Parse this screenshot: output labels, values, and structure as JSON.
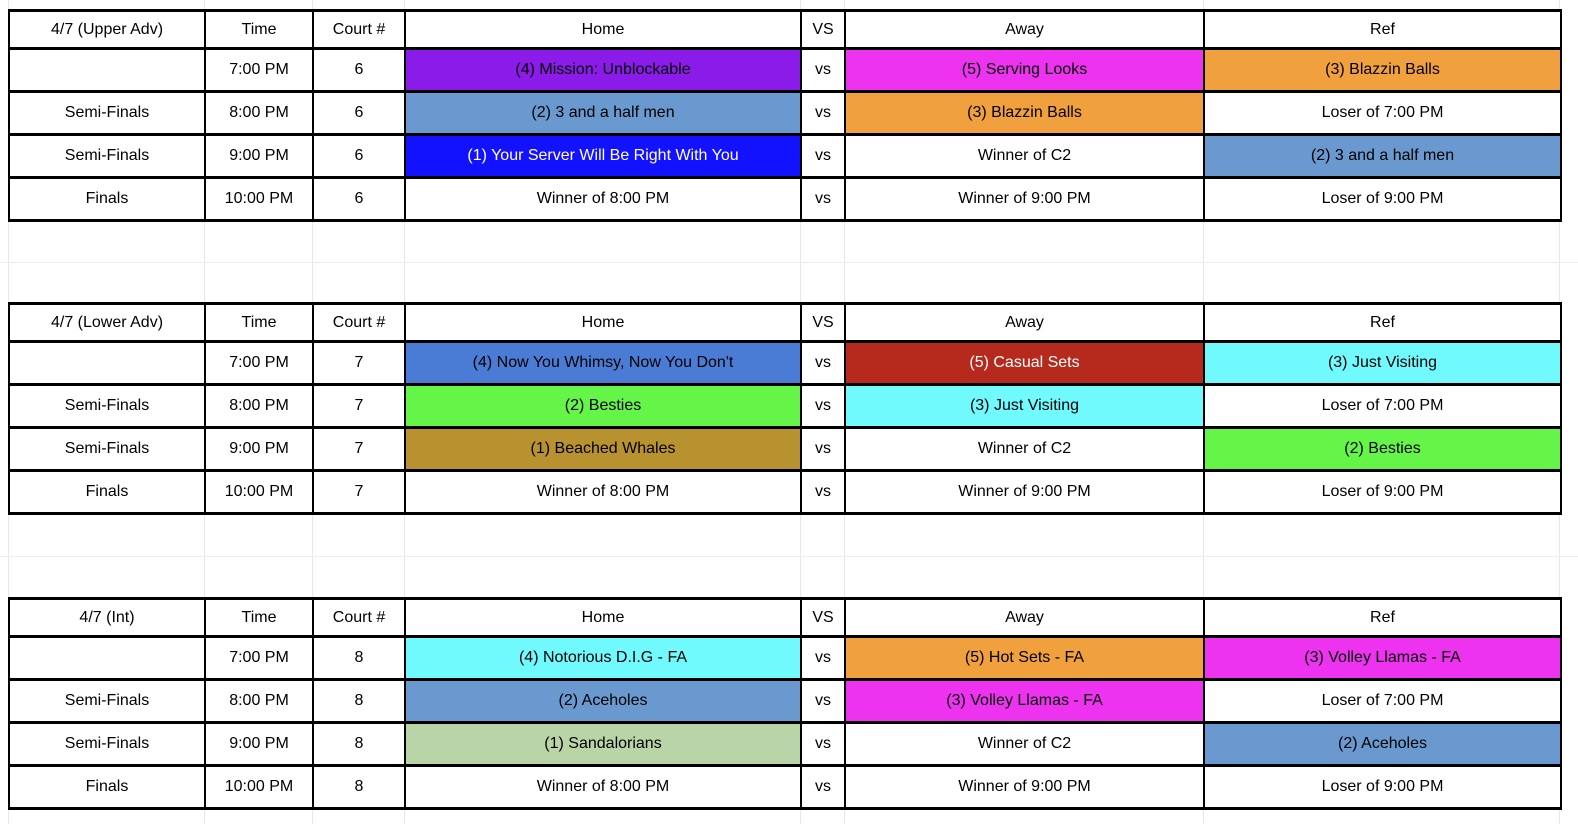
{
  "columns": {
    "time": "Time",
    "court": "Court #",
    "home": "Home",
    "vs": "VS",
    "away": "Away",
    "ref": "Ref"
  },
  "vs_label": "vs",
  "palette": {
    "white": "#FFFFFF",
    "purple": "#8B1BE8",
    "magenta": "#EE33F0",
    "orange": "#F0A03C",
    "steelblue": "#6999CF",
    "blue": "#1212FF",
    "royalblue": "#4B7CD5",
    "darkred": "#B52A1D",
    "cyan": "#70FAFE",
    "green": "#64F548",
    "gold": "#B7922E",
    "palegreen": "#B9D4A7",
    "black_text": "#000000",
    "white_text": "#FFFFFF"
  },
  "tables": [
    {
      "title": "4/7 (Upper Adv)",
      "rows": [
        {
          "label": "",
          "time": "7:00 PM",
          "court": "6",
          "home": {
            "text": "(4) Mission: Unblockable",
            "bg": "purple"
          },
          "away": {
            "text": "(5) Serving Looks",
            "bg": "magenta"
          },
          "ref": {
            "text": "(3) Blazzin Balls",
            "bg": "orange"
          }
        },
        {
          "label": "Semi-Finals",
          "time": "8:00 PM",
          "court": "6",
          "home": {
            "text": "(2) 3 and a half men",
            "bg": "steelblue"
          },
          "away": {
            "text": "(3) Blazzin Balls",
            "bg": "orange"
          },
          "ref": {
            "text": "Loser of 7:00 PM",
            "bg": "white"
          }
        },
        {
          "label": "Semi-Finals",
          "time": "9:00 PM",
          "court": "6",
          "home": {
            "text": "(1) Your Server Will Be Right With You",
            "bg": "blue",
            "fg": "#FFFFFF"
          },
          "away": {
            "text": "Winner of C2",
            "bg": "white"
          },
          "ref": {
            "text": "(2) 3 and a half men",
            "bg": "steelblue"
          }
        },
        {
          "label": "Finals",
          "time": "10:00 PM",
          "court": "6",
          "home": {
            "text": "Winner of 8:00 PM",
            "bg": "white"
          },
          "away": {
            "text": "Winner of 9:00 PM",
            "bg": "white"
          },
          "ref": {
            "text": "Loser of 9:00 PM",
            "bg": "white"
          }
        }
      ]
    },
    {
      "title": "4/7 (Lower Adv)",
      "rows": [
        {
          "label": "",
          "time": "7:00 PM",
          "court": "7",
          "home": {
            "text": "(4) Now You Whimsy, Now You Don't",
            "bg": "royalblue"
          },
          "away": {
            "text": "(5) Casual Sets",
            "bg": "darkred",
            "fg": "#FFFFFF"
          },
          "ref": {
            "text": "(3) Just Visiting",
            "bg": "cyan"
          }
        },
        {
          "label": "Semi-Finals",
          "time": "8:00 PM",
          "court": "7",
          "home": {
            "text": "(2) Besties",
            "bg": "green"
          },
          "away": {
            "text": "(3) Just Visiting",
            "bg": "cyan"
          },
          "ref": {
            "text": "Loser of 7:00 PM",
            "bg": "white"
          }
        },
        {
          "label": "Semi-Finals",
          "time": "9:00 PM",
          "court": "7",
          "home": {
            "text": "(1) Beached Whales",
            "bg": "gold"
          },
          "away": {
            "text": "Winner of C2",
            "bg": "white"
          },
          "ref": {
            "text": "(2) Besties",
            "bg": "green"
          }
        },
        {
          "label": "Finals",
          "time": "10:00 PM",
          "court": "7",
          "home": {
            "text": "Winner of 8:00 PM",
            "bg": "white"
          },
          "away": {
            "text": "Winner of 9:00 PM",
            "bg": "white"
          },
          "ref": {
            "text": "Loser of 9:00 PM",
            "bg": "white"
          }
        }
      ]
    },
    {
      "title": "4/7 (Int)",
      "rows": [
        {
          "label": "",
          "time": "7:00 PM",
          "court": "8",
          "home": {
            "text": "(4) Notorious D.I.G - FA",
            "bg": "cyan"
          },
          "away": {
            "text": "(5) Hot Sets - FA",
            "bg": "orange"
          },
          "ref": {
            "text": "(3) Volley Llamas - FA",
            "bg": "magenta"
          }
        },
        {
          "label": "Semi-Finals",
          "time": "8:00 PM",
          "court": "8",
          "home": {
            "text": "(2) Aceholes",
            "bg": "steelblue"
          },
          "away": {
            "text": "(3) Volley Llamas - FA",
            "bg": "magenta"
          },
          "ref": {
            "text": "Loser of 7:00 PM",
            "bg": "white"
          }
        },
        {
          "label": "Semi-Finals",
          "time": "9:00 PM",
          "court": "8",
          "home": {
            "text": "(1) Sandalorians",
            "bg": "palegreen"
          },
          "away": {
            "text": "Winner of C2",
            "bg": "white"
          },
          "ref": {
            "text": "(2) Aceholes",
            "bg": "steelblue"
          }
        },
        {
          "label": "Finals",
          "time": "10:00 PM",
          "court": "8",
          "home": {
            "text": "Winner of 8:00 PM",
            "bg": "white"
          },
          "away": {
            "text": "Winner of 9:00 PM",
            "bg": "white"
          },
          "ref": {
            "text": "Loser of 9:00 PM",
            "bg": "white"
          }
        }
      ]
    }
  ]
}
